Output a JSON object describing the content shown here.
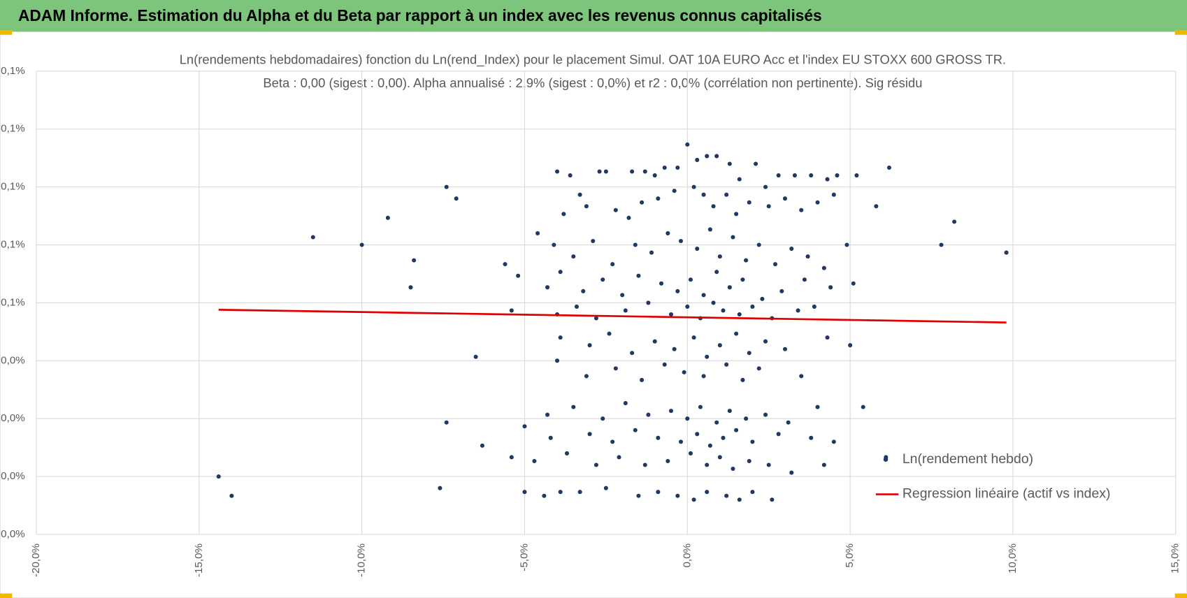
{
  "header": "ADAM Informe. Estimation du Alpha et du Beta par rapport à un index avec les revenus connus capitalisés",
  "chart_data": {
    "type": "scatter",
    "title": "Ln(rendements hebdomadaires) fonction du Ln(rend_Index) pour le placement Simul. OAT 10A EURO Acc et l'index EU STOXX 600 GROSS TR.",
    "subtitle": "Beta : 0,00 (sigest : 0,00).  Alpha annualisé : 2,9% (sigest : 0,0%) et r2 : 0,0% (corrélation non pertinente). Sig résidu",
    "xlim": [
      -20,
      15
    ],
    "xticks": [
      {
        "value": -20,
        "label": "-20,0%"
      },
      {
        "value": -15,
        "label": "-15,0%"
      },
      {
        "value": -10,
        "label": "-10,0%"
      },
      {
        "value": -5,
        "label": "-5,0%"
      },
      {
        "value": 0,
        "label": "0,0%"
      },
      {
        "value": 5,
        "label": "5,0%"
      },
      {
        "value": 10,
        "label": "10,0%"
      },
      {
        "value": 15,
        "label": "15,0%"
      }
    ],
    "ylim": [
      0,
      0.12
    ],
    "yticks": [
      {
        "value": 0,
        "label": "0,0%"
      },
      {
        "value": 0.015,
        "label": "0,0%"
      },
      {
        "value": 0.03,
        "label": "0,0%"
      },
      {
        "value": 0.045,
        "label": "0,0%"
      },
      {
        "value": 0.06,
        "label": "0,1%"
      },
      {
        "value": 0.075,
        "label": "0,1%"
      },
      {
        "value": 0.09,
        "label": "0,1%"
      },
      {
        "value": 0.105,
        "label": "0,1%"
      },
      {
        "value": 0.12,
        "label": "0,1%"
      }
    ],
    "grid": true,
    "legend": "lower right",
    "series": [
      {
        "name": "Ln(rendement hebdo)",
        "type": "scatter",
        "color": "#1f3864",
        "x": [
          -14.4,
          -14,
          -11.5,
          -10,
          -9.2,
          -8.4,
          -8.5,
          -7.4,
          -7.1,
          -7.6,
          -7.4,
          7.8,
          8.2,
          9.8,
          6.2,
          5.8,
          5.4,
          6.1,
          -6.5,
          -6.3,
          -4.0,
          -3.6,
          -3.3,
          -2.7,
          -2.5,
          -1.7,
          -1.3,
          -1.0,
          -0.7,
          -0.3,
          0.0,
          0.3,
          0.6,
          0.9,
          1.3,
          1.6,
          2.1,
          2.4,
          2.8,
          3.3,
          3.8,
          4.3,
          4.6,
          5.2,
          -3.8,
          -3.1,
          -2.2,
          -1.8,
          -1.4,
          -0.9,
          -0.4,
          0.2,
          0.5,
          0.8,
          1.2,
          1.5,
          1.9,
          2.5,
          3.0,
          3.5,
          4.0,
          4.5,
          -4.6,
          -4.1,
          -3.5,
          -2.9,
          -2.3,
          -1.6,
          -1.1,
          -0.6,
          -0.2,
          0.3,
          0.7,
          1.0,
          1.4,
          1.8,
          2.2,
          2.7,
          3.2,
          3.7,
          4.2,
          4.9,
          -5.6,
          -5.2,
          -4.3,
          -3.9,
          -3.2,
          -2.6,
          -2.0,
          -1.5,
          -0.8,
          -0.3,
          0.1,
          0.5,
          0.9,
          1.3,
          1.7,
          2.3,
          2.9,
          3.6,
          4.4,
          5.1,
          -5.4,
          -4.0,
          -3.4,
          -2.8,
          -1.9,
          -1.2,
          -0.5,
          0.0,
          0.4,
          0.8,
          1.1,
          1.6,
          2.0,
          2.6,
          3.4,
          3.9,
          -3.9,
          -3.0,
          -2.4,
          -1.7,
          -1.0,
          -0.4,
          0.2,
          0.6,
          1.0,
          1.5,
          1.9,
          2.4,
          3.0,
          4.3,
          5.0,
          -4.0,
          -3.1,
          -2.2,
          -1.4,
          -0.7,
          -0.1,
          0.5,
          1.2,
          1.7,
          2.2,
          3.5,
          -4.3,
          -3.5,
          -2.6,
          -1.9,
          -1.2,
          -0.5,
          0.0,
          0.4,
          0.9,
          1.3,
          1.8,
          2.4,
          3.1,
          4.0,
          -5.0,
          -4.2,
          -3.0,
          -2.3,
          -1.6,
          -0.9,
          -0.2,
          0.3,
          0.7,
          1.1,
          1.5,
          2.0,
          2.8,
          3.8,
          4.5,
          -5.4,
          -4.7,
          -3.7,
          -2.8,
          -2.1,
          -1.3,
          -0.6,
          0.1,
          0.6,
          1.0,
          1.4,
          1.9,
          2.5,
          3.2,
          4.2,
          -5.0,
          -4.4,
          -3.9,
          -3.3,
          -2.5,
          -1.5,
          -0.9,
          -0.3,
          0.2,
          0.6,
          1.2,
          1.6,
          2.0,
          2.6
        ],
        "values": [
          0.015,
          0.01,
          0.077,
          0.075,
          0.082,
          0.071,
          0.064,
          0.09,
          0.087,
          0.012,
          0.029,
          0.075,
          0.081,
          0.073,
          0.095,
          0.085,
          0.033,
          0.02,
          0.046,
          0.023,
          0.094,
          0.093,
          0.088,
          0.094,
          0.094,
          0.094,
          0.094,
          0.093,
          0.095,
          0.095,
          0.101,
          0.097,
          0.098,
          0.098,
          0.096,
          0.092,
          0.096,
          0.09,
          0.093,
          0.093,
          0.093,
          0.092,
          0.093,
          0.093,
          0.083,
          0.085,
          0.084,
          0.082,
          0.086,
          0.087,
          0.089,
          0.09,
          0.088,
          0.085,
          0.088,
          0.083,
          0.086,
          0.085,
          0.087,
          0.084,
          0.086,
          0.088,
          0.078,
          0.075,
          0.072,
          0.076,
          0.07,
          0.075,
          0.073,
          0.078,
          0.076,
          0.074,
          0.079,
          0.072,
          0.077,
          0.071,
          0.075,
          0.07,
          0.074,
          0.072,
          0.069,
          0.075,
          0.07,
          0.067,
          0.064,
          0.068,
          0.063,
          0.066,
          0.062,
          0.067,
          0.065,
          0.063,
          0.066,
          0.062,
          0.068,
          0.064,
          0.066,
          0.061,
          0.063,
          0.066,
          0.064,
          0.065,
          0.058,
          0.057,
          0.059,
          0.056,
          0.058,
          0.06,
          0.057,
          0.059,
          0.056,
          0.06,
          0.058,
          0.057,
          0.059,
          0.056,
          0.058,
          0.059,
          0.051,
          0.049,
          0.052,
          0.047,
          0.05,
          0.048,
          0.051,
          0.046,
          0.049,
          0.052,
          0.047,
          0.05,
          0.048,
          0.051,
          0.049,
          0.045,
          0.041,
          0.043,
          0.04,
          0.044,
          0.042,
          0.041,
          0.044,
          0.04,
          0.043,
          0.041,
          0.031,
          0.033,
          0.03,
          0.034,
          0.031,
          0.032,
          0.03,
          0.033,
          0.029,
          0.032,
          0.03,
          0.031,
          0.029,
          0.033,
          0.028,
          0.025,
          0.026,
          0.024,
          0.027,
          0.025,
          0.024,
          0.026,
          0.023,
          0.025,
          0.027,
          0.024,
          0.026,
          0.025,
          0.024,
          0.02,
          0.019,
          0.021,
          0.018,
          0.02,
          0.018,
          0.019,
          0.021,
          0.018,
          0.02,
          0.017,
          0.019,
          0.018,
          0.016,
          0.018,
          0.011,
          0.01,
          0.011,
          0.011,
          0.012,
          0.01,
          0.011,
          0.01,
          0.009,
          0.011,
          0.01,
          0.009,
          0.011,
          0.009
        ]
      },
      {
        "name": "Regression linéaire (actif vs index)",
        "type": "line",
        "color": "#e00000",
        "x": [
          -14.4,
          9.8
        ],
        "values": [
          0.0582,
          0.0549
        ]
      }
    ]
  }
}
